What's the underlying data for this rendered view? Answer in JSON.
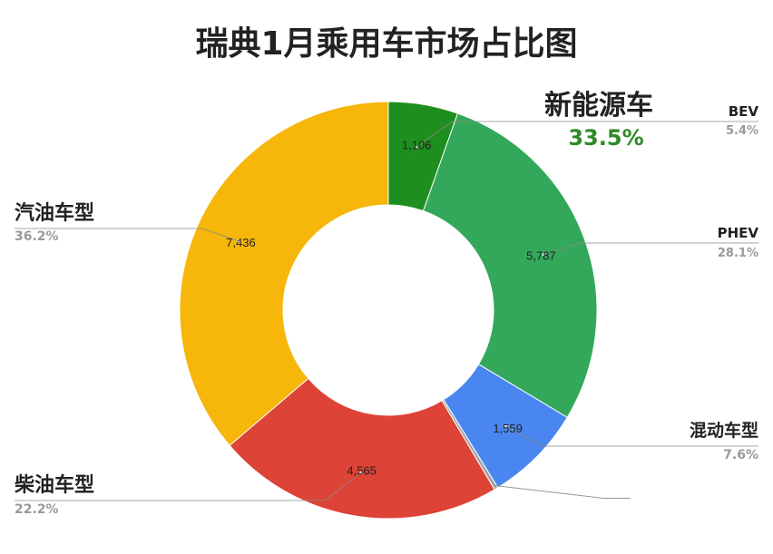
{
  "chart_data": {
    "type": "pie",
    "title": "瑞典1月乘用车市场占比图",
    "donut": true,
    "slices": [
      {
        "label": "BEV",
        "value": 1106,
        "percent_label": "5.4%",
        "color": "#1e8f1e"
      },
      {
        "label": "PHEV",
        "value": 5787,
        "percent_label": "28.1%",
        "color": "#33a85a"
      },
      {
        "label": "混动车型",
        "value": 1559,
        "percent_label": "7.6%",
        "color": "#4a86f0"
      },
      {
        "label": "",
        "value": 60,
        "percent_label": "",
        "color": "#a3a3a3"
      },
      {
        "label": "柴油车型",
        "value": 4565,
        "percent_label": "22.2%",
        "color": "#dd4337"
      },
      {
        "label": "汽油车型",
        "value": 7436,
        "percent_label": "36.2%",
        "color": "#f6b60a"
      }
    ],
    "group_annotation": {
      "label": "新能源车",
      "percent_label": "33.5%",
      "color": "#2e8b26"
    }
  }
}
